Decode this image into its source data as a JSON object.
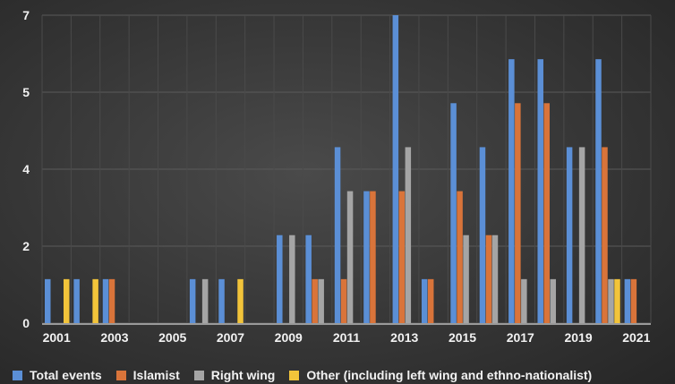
{
  "chart_data": {
    "type": "bar",
    "title": "",
    "xlabel": "",
    "ylabel": "",
    "ylim": [
      0,
      7
    ],
    "y_ticks": [
      0,
      1.75,
      3.5,
      5.25,
      7
    ],
    "y_tick_labels": [
      "0",
      "2",
      "4",
      "5",
      "7"
    ],
    "categories": [
      "2001",
      "2002",
      "2003",
      "2004",
      "2005",
      "2006",
      "2007",
      "2008",
      "2009",
      "2010",
      "2011",
      "2012",
      "2013",
      "2014",
      "2015",
      "2016",
      "2017",
      "2018",
      "2019",
      "2020",
      "2021"
    ],
    "x_tick_labels": [
      "2001",
      "2003",
      "2005",
      "2007",
      "2009",
      "2011",
      "2013",
      "2015",
      "2017",
      "2019",
      "2021"
    ],
    "grid": true,
    "legend_position": "bottom",
    "series": [
      {
        "name": "Total events",
        "color": "#5b8fd6",
        "values": [
          1,
          1,
          1,
          0,
          0,
          1,
          1,
          0,
          2,
          2,
          4,
          3,
          7,
          1,
          5,
          4,
          6,
          6,
          4,
          6,
          1
        ]
      },
      {
        "name": "Islamist",
        "color": "#d9743a",
        "values": [
          0,
          0,
          1,
          0,
          0,
          0,
          0,
          0,
          0,
          1,
          1,
          3,
          3,
          1,
          3,
          2,
          5,
          5,
          0,
          4,
          1
        ]
      },
      {
        "name": "Right wing",
        "color": "#a5a5a5",
        "values": [
          0,
          0,
          0,
          0,
          0,
          1,
          0,
          0,
          2,
          1,
          3,
          0,
          4,
          0,
          2,
          2,
          1,
          1,
          4,
          1,
          0
        ]
      },
      {
        "name": "Other (including left wing and ethno-nationalist)",
        "color": "#f2c43a",
        "values": [
          1,
          1,
          0,
          0,
          0,
          0,
          1,
          0,
          0,
          0,
          0,
          0,
          0,
          0,
          0,
          0,
          0,
          0,
          0,
          1,
          0
        ]
      }
    ]
  }
}
